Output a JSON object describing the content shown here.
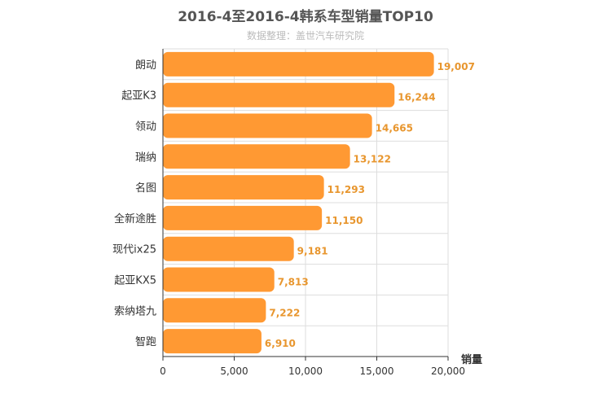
{
  "chart_data": {
    "type": "bar",
    "orientation": "horizontal",
    "title": "2016-4至2016-4韩系车型销量TOP10",
    "subtitle": "数据整理：盖世汽车研究院",
    "xlabel": "销量",
    "ylabel": "",
    "xlim": [
      0,
      20000
    ],
    "x_ticks": [
      "0",
      "5,000",
      "10,000",
      "15,000",
      "20,000"
    ],
    "x_tick_values": [
      0,
      5000,
      10000,
      15000,
      20000
    ],
    "grid": true,
    "legend": "none",
    "categories": [
      "朗动",
      "起亚K3",
      "领动",
      "瑞纳",
      "名图",
      "全新途胜",
      "现代ix25",
      "起亚KX5",
      "索纳塔九",
      "智跑"
    ],
    "values": [
      19007,
      16244,
      14665,
      13122,
      11293,
      11150,
      9181,
      7813,
      7222,
      6910
    ],
    "value_labels": [
      "19,007",
      "16,244",
      "14,665",
      "13,122",
      "11,293",
      "11,150",
      "9,181",
      "7,813",
      "7,222",
      "6,910"
    ],
    "colors": {
      "bar": "#ff9933",
      "value_label": "#e8962e",
      "grid": "#dddddd",
      "axis": "#333333",
      "text": "#333333"
    }
  }
}
